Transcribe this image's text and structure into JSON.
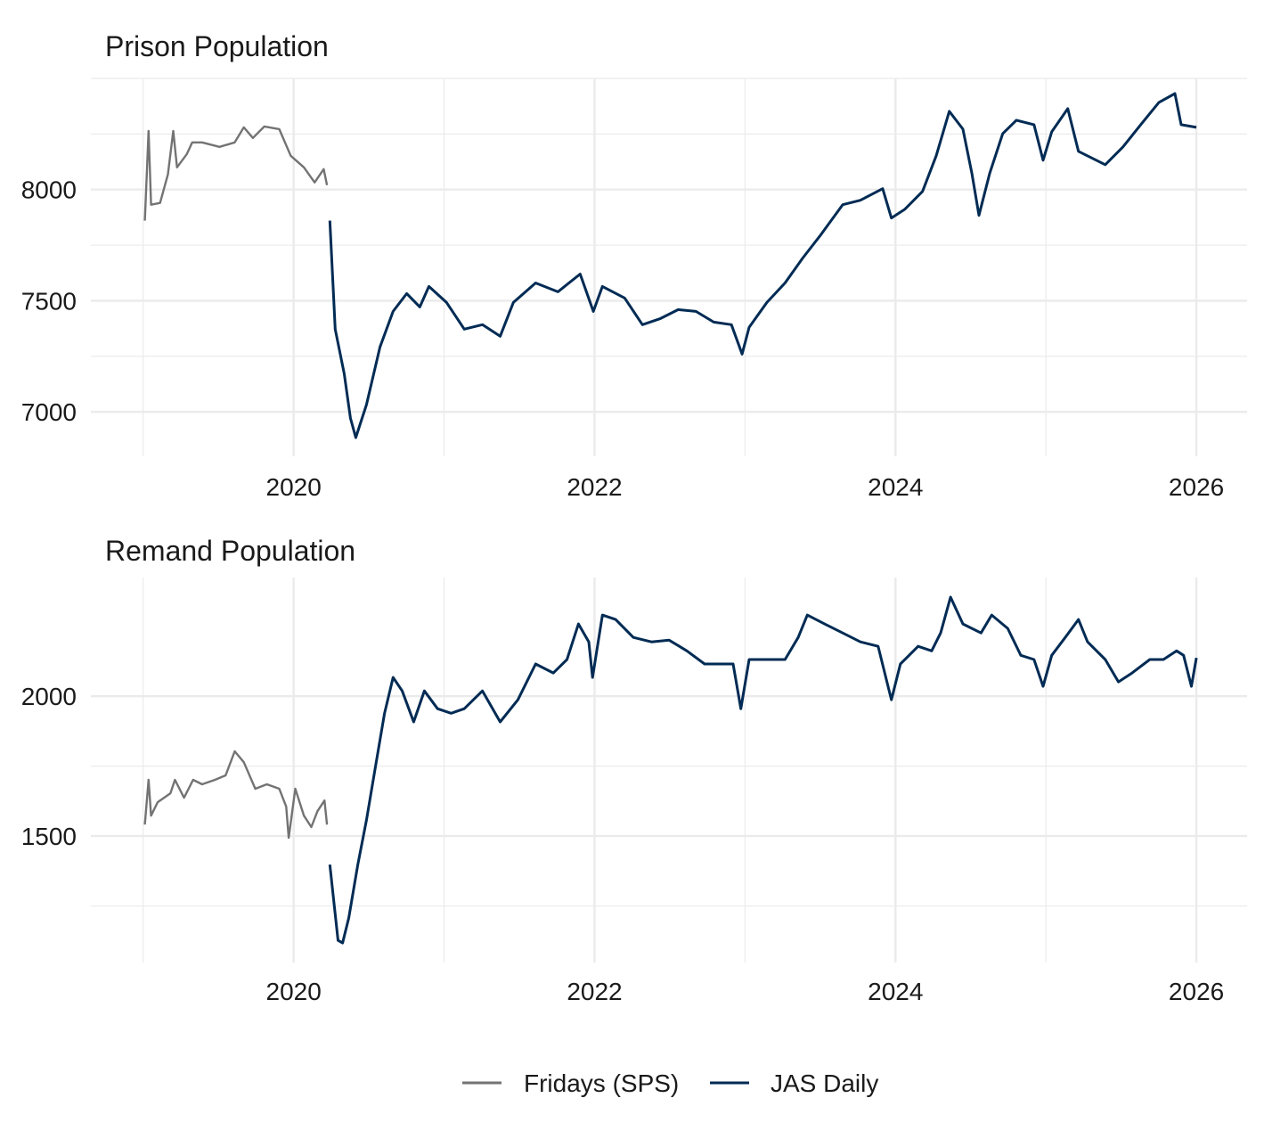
{
  "legend": {
    "position": "bottom",
    "items": [
      {
        "label": "Fridays (SPS)",
        "color": "#737373"
      },
      {
        "label": "JAS Daily",
        "color": "#002b54"
      }
    ]
  },
  "chart_data": [
    {
      "type": "line",
      "title": "Prison Population",
      "xlabel": "",
      "ylabel": "",
      "xlim": [
        "2018-08-27",
        "2026-05-04"
      ],
      "ylim": [
        6800,
        8500
      ],
      "x_ticks": [
        "2020",
        "2022",
        "2024",
        "2026"
      ],
      "y_ticks": [
        "7000",
        "7500",
        "8000"
      ],
      "y_minor": [
        7250,
        7750,
        8250,
        8500
      ],
      "grid": true,
      "series": [
        {
          "name": "Fridays (SPS)",
          "color": "#737373",
          "points": [
            [
              "2019-01-05",
              7860
            ],
            [
              "2019-01-14",
              8264
            ],
            [
              "2019-01-20",
              7932
            ],
            [
              "2019-02-11",
              7940
            ],
            [
              "2019-03-02",
              8068
            ],
            [
              "2019-03-15",
              8264
            ],
            [
              "2019-03-24",
              8100
            ],
            [
              "2019-04-17",
              8160
            ],
            [
              "2019-04-30",
              8212
            ],
            [
              "2019-05-24",
              8212
            ],
            [
              "2019-07-05",
              8192
            ],
            [
              "2019-08-11",
              8212
            ],
            [
              "2019-09-02",
              8280
            ],
            [
              "2019-09-24",
              8232
            ],
            [
              "2019-10-22",
              8284
            ],
            [
              "2019-11-27",
              8272
            ],
            [
              "2019-12-25",
              8152
            ],
            [
              "2020-01-26",
              8100
            ],
            [
              "2020-02-21",
              8032
            ],
            [
              "2020-03-14",
              8092
            ],
            [
              "2020-03-22",
              8020
            ]
          ]
        },
        {
          "name": "JAS Daily",
          "color": "#002b54",
          "points": [
            [
              "2020-03-29",
              7860
            ],
            [
              "2020-04-11",
              7372
            ],
            [
              "2020-05-03",
              7172
            ],
            [
              "2020-05-18",
              6972
            ],
            [
              "2020-05-31",
              6884
            ],
            [
              "2020-06-26",
              7032
            ],
            [
              "2020-07-29",
              7292
            ],
            [
              "2020-08-30",
              7452
            ],
            [
              "2020-10-02",
              7532
            ],
            [
              "2020-11-03",
              7472
            ],
            [
              "2020-11-25",
              7564
            ],
            [
              "2021-01-07",
              7492
            ],
            [
              "2021-02-19",
              7372
            ],
            [
              "2021-04-04",
              7392
            ],
            [
              "2021-05-17",
              7340
            ],
            [
              "2021-06-18",
              7492
            ],
            [
              "2021-08-11",
              7580
            ],
            [
              "2021-10-04",
              7540
            ],
            [
              "2021-11-27",
              7620
            ],
            [
              "2021-12-29",
              7452
            ],
            [
              "2022-01-20",
              7564
            ],
            [
              "2022-03-15",
              7512
            ],
            [
              "2022-04-27",
              7392
            ],
            [
              "2022-06-10",
              7420
            ],
            [
              "2022-07-23",
              7460
            ],
            [
              "2022-09-04",
              7452
            ],
            [
              "2022-10-17",
              7404
            ],
            [
              "2022-11-29",
              7392
            ],
            [
              "2022-12-25",
              7260
            ],
            [
              "2023-01-11",
              7380
            ],
            [
              "2023-02-23",
              7492
            ],
            [
              "2023-04-08",
              7580
            ],
            [
              "2023-05-21",
              7692
            ],
            [
              "2023-07-02",
              7792
            ],
            [
              "2023-08-26",
              7932
            ],
            [
              "2023-10-08",
              7952
            ],
            [
              "2023-12-01",
              8004
            ],
            [
              "2023-12-22",
              7872
            ],
            [
              "2024-01-24",
              7912
            ],
            [
              "2024-03-07",
              7992
            ],
            [
              "2024-04-09",
              8152
            ],
            [
              "2024-05-11",
              8352
            ],
            [
              "2024-06-13",
              8272
            ],
            [
              "2024-07-05",
              8072
            ],
            [
              "2024-07-22",
              7884
            ],
            [
              "2024-08-17",
              8072
            ],
            [
              "2024-09-18",
              8252
            ],
            [
              "2024-10-21",
              8312
            ],
            [
              "2024-12-03",
              8292
            ],
            [
              "2024-12-25",
              8132
            ],
            [
              "2025-01-15",
              8260
            ],
            [
              "2025-02-23",
              8364
            ],
            [
              "2025-03-21",
              8172
            ],
            [
              "2025-05-25",
              8112
            ],
            [
              "2025-07-07",
              8192
            ],
            [
              "2025-08-19",
              8292
            ],
            [
              "2025-10-02",
              8392
            ],
            [
              "2025-11-10",
              8432
            ],
            [
              "2025-11-25",
              8292
            ],
            [
              "2026-01-01",
              8280
            ]
          ]
        }
      ]
    },
    {
      "type": "line",
      "title": "Remand Population",
      "xlabel": "",
      "ylabel": "",
      "xlim": [
        "2018-08-27",
        "2026-05-04"
      ],
      "ylim": [
        1048,
        2424
      ],
      "x_ticks": [
        "2020",
        "2022",
        "2024",
        "2026"
      ],
      "y_ticks": [
        "1500",
        "2000"
      ],
      "y_minor": [
        1250,
        1750
      ],
      "grid": true,
      "series": [
        {
          "name": "Fridays (SPS)",
          "color": "#737373",
          "points": [
            [
              "2019-01-05",
              1541
            ],
            [
              "2019-01-14",
              1701
            ],
            [
              "2019-01-20",
              1573
            ],
            [
              "2019-02-05",
              1621
            ],
            [
              "2019-03-08",
              1653
            ],
            [
              "2019-03-19",
              1701
            ],
            [
              "2019-04-10",
              1637
            ],
            [
              "2019-05-02",
              1701
            ],
            [
              "2019-05-24",
              1685
            ],
            [
              "2019-06-24",
              1701
            ],
            [
              "2019-07-20",
              1717
            ],
            [
              "2019-08-11",
              1803
            ],
            [
              "2019-09-02",
              1764
            ],
            [
              "2019-09-30",
              1669
            ],
            [
              "2019-10-28",
              1685
            ],
            [
              "2019-11-27",
              1669
            ],
            [
              "2019-12-14",
              1605
            ],
            [
              "2019-12-20",
              1494
            ],
            [
              "2020-01-05",
              1669
            ],
            [
              "2020-01-26",
              1573
            ],
            [
              "2020-02-13",
              1532
            ],
            [
              "2020-02-28",
              1589
            ],
            [
              "2020-03-16",
              1627
            ],
            [
              "2020-03-22",
              1541
            ]
          ]
        },
        {
          "name": "JAS Daily",
          "color": "#002b54",
          "points": [
            [
              "2020-03-29",
              1398
            ],
            [
              "2020-04-05",
              1303
            ],
            [
              "2020-04-18",
              1127
            ],
            [
              "2020-04-29",
              1118
            ],
            [
              "2020-05-14",
              1207
            ],
            [
              "2020-06-05",
              1398
            ],
            [
              "2020-06-26",
              1557
            ],
            [
              "2020-07-18",
              1748
            ],
            [
              "2020-08-09",
              1939
            ],
            [
              "2020-08-30",
              2067
            ],
            [
              "2020-09-21",
              2019
            ],
            [
              "2020-10-19",
              1908
            ],
            [
              "2020-11-14",
              2019
            ],
            [
              "2020-12-16",
              1955
            ],
            [
              "2021-01-18",
              1939
            ],
            [
              "2021-02-19",
              1955
            ],
            [
              "2021-04-04",
              2019
            ],
            [
              "2021-05-17",
              1908
            ],
            [
              "2021-06-29",
              1987
            ],
            [
              "2021-08-11",
              2115
            ],
            [
              "2021-09-23",
              2083
            ],
            [
              "2021-10-26",
              2131
            ],
            [
              "2021-11-23",
              2258
            ],
            [
              "2021-12-18",
              2194
            ],
            [
              "2021-12-27",
              2067
            ],
            [
              "2022-01-20",
              2290
            ],
            [
              "2022-02-21",
              2274
            ],
            [
              "2022-04-05",
              2210
            ],
            [
              "2022-05-19",
              2194
            ],
            [
              "2022-07-01",
              2200
            ],
            [
              "2022-08-13",
              2162
            ],
            [
              "2022-09-25",
              2115
            ],
            [
              "2022-11-07",
              2115
            ],
            [
              "2022-12-03",
              2115
            ],
            [
              "2022-12-22",
              1955
            ],
            [
              "2023-01-11",
              2131
            ],
            [
              "2023-02-23",
              2131
            ],
            [
              "2023-04-08",
              2131
            ],
            [
              "2023-05-10",
              2210
            ],
            [
              "2023-06-01",
              2290
            ],
            [
              "2023-07-13",
              2258
            ],
            [
              "2023-08-26",
              2226
            ],
            [
              "2023-10-08",
              2194
            ],
            [
              "2023-11-20",
              2178
            ],
            [
              "2023-12-22",
              1987
            ],
            [
              "2024-01-13",
              2115
            ],
            [
              "2024-02-25",
              2178
            ],
            [
              "2024-03-29",
              2162
            ],
            [
              "2024-04-20",
              2226
            ],
            [
              "2024-05-14",
              2354
            ],
            [
              "2024-06-13",
              2258
            ],
            [
              "2024-07-27",
              2226
            ],
            [
              "2024-08-22",
              2290
            ],
            [
              "2024-09-30",
              2242
            ],
            [
              "2024-11-01",
              2146
            ],
            [
              "2024-12-03",
              2131
            ],
            [
              "2024-12-25",
              2035
            ],
            [
              "2025-01-15",
              2146
            ],
            [
              "2025-02-17",
              2210
            ],
            [
              "2025-03-21",
              2274
            ],
            [
              "2025-04-12",
              2194
            ],
            [
              "2025-05-25",
              2131
            ],
            [
              "2025-06-26",
              2051
            ],
            [
              "2025-07-29",
              2083
            ],
            [
              "2025-09-10",
              2131
            ],
            [
              "2025-10-13",
              2131
            ],
            [
              "2025-11-14",
              2162
            ],
            [
              "2025-12-01",
              2146
            ],
            [
              "2025-12-20",
              2035
            ],
            [
              "2026-01-01",
              2137
            ]
          ]
        }
      ]
    }
  ]
}
